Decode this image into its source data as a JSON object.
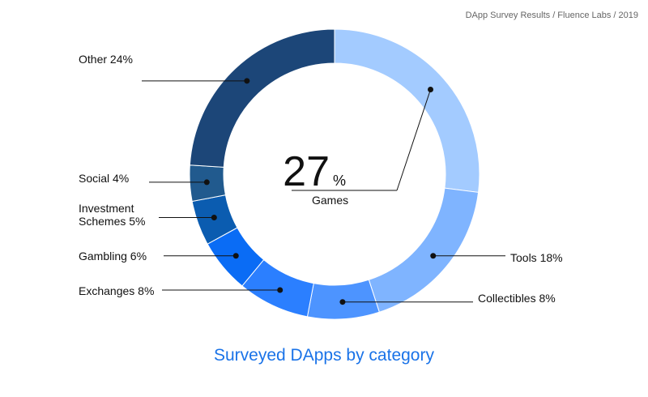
{
  "source_text": "DApp Survey Results / Fluence Labs / 2019",
  "chart_data": {
    "type": "pie",
    "style": "donut",
    "title": "Surveyed DApps by category",
    "unit": "%",
    "center": {
      "value": "27",
      "unit": "%",
      "category": "Games"
    },
    "slices": [
      {
        "name": "Games",
        "value": 27,
        "color": "#a3cbff"
      },
      {
        "name": "Tools",
        "value": 18,
        "color": "#7fb4ff"
      },
      {
        "name": "Collectibles",
        "value": 8,
        "color": "#4d94ff"
      },
      {
        "name": "Exchanges",
        "value": 8,
        "color": "#2b7fff"
      },
      {
        "name": "Gambling",
        "value": 6,
        "color": "#0a6cf5"
      },
      {
        "name": "Investment Schemes",
        "value": 5,
        "color": "#0b5cb0"
      },
      {
        "name": "Social",
        "value": 4,
        "color": "#215a8e"
      },
      {
        "name": "Other",
        "value": 24,
        "color": "#1c4678"
      }
    ],
    "labels": [
      {
        "slice": "Tools",
        "lines": [
          "Tools 18%"
        ]
      },
      {
        "slice": "Collectibles",
        "lines": [
          "Collectibles 8%"
        ]
      },
      {
        "slice": "Exchanges",
        "lines": [
          "Exchanges 8%"
        ]
      },
      {
        "slice": "Gambling",
        "lines": [
          "Gambling 6%"
        ]
      },
      {
        "slice": "Investment Schemes",
        "lines": [
          "Investment",
          "Schemes 5%"
        ]
      },
      {
        "slice": "Social",
        "lines": [
          "Social 4%"
        ]
      },
      {
        "slice": "Other",
        "lines": [
          "Other 24%"
        ]
      }
    ]
  }
}
